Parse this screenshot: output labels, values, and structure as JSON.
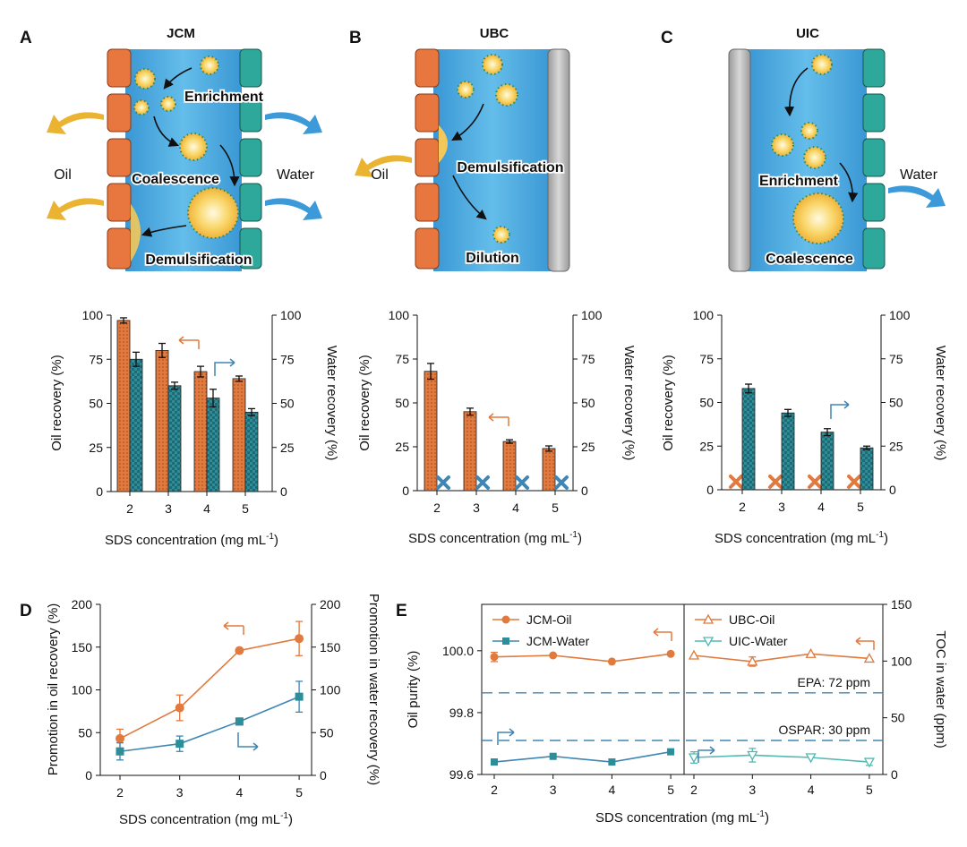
{
  "panels": {
    "A": {
      "letter": "A",
      "title": "JCM",
      "labels": {
        "oil": "Oil",
        "water": "Water",
        "enrichment": "Enrichment",
        "coalescence": "Coalescence",
        "demulsification": "Demulsification"
      }
    },
    "B": {
      "letter": "B",
      "title": "UBC",
      "labels": {
        "oil": "Oil",
        "demulsification": "Demulsification",
        "dilution": "Dilution"
      }
    },
    "C": {
      "letter": "C",
      "title": "UIC",
      "labels": {
        "water": "Water",
        "enrichment": "Enrichment",
        "coalescence": "Coalescence"
      }
    },
    "D": {
      "letter": "D"
    },
    "E": {
      "letter": "E"
    }
  },
  "colors": {
    "oil": "#e07a3e",
    "water": "#2d8d99",
    "water_line": "#3f86b3",
    "water_light": "#52b9b3",
    "channel": "#4aa8de",
    "grey": "#bdbdbd",
    "droplet": "#f5c84a",
    "axis": "#111111"
  },
  "chart_data": [
    {
      "id": "A",
      "type": "bar",
      "categories": [
        "2",
        "3",
        "4",
        "5"
      ],
      "series": [
        {
          "name": "Oil recovery",
          "axis": "left",
          "values": [
            97,
            80,
            68,
            64
          ],
          "errors": [
            1.5,
            4,
            3,
            1.5
          ]
        },
        {
          "name": "Water recovery",
          "axis": "right",
          "values": [
            75,
            60,
            53,
            45
          ],
          "errors": [
            4,
            2,
            5,
            2
          ]
        }
      ],
      "xlabel": "SDS concentration (mg mL",
      "xlabel_sup": "-1",
      "xlabel_end": ")",
      "ylabel": "Oil recovery (%)",
      "ylabel_right": "Water recovery (%)",
      "ylim": [
        0,
        100
      ],
      "yticks": [
        "0",
        "25",
        "50",
        "75",
        "100"
      ]
    },
    {
      "id": "B",
      "type": "bar",
      "categories": [
        "2",
        "3",
        "4",
        "5"
      ],
      "series": [
        {
          "name": "Oil recovery",
          "axis": "left",
          "values": [
            68,
            45,
            28,
            24
          ],
          "errors": [
            4.5,
            2,
            1,
            1.5
          ]
        },
        {
          "name": "Water recovery",
          "axis": "right",
          "values": [
            0,
            0,
            0,
            0
          ],
          "marker": "x"
        }
      ],
      "xlabel": "SDS concentration (mg mL",
      "xlabel_sup": "-1",
      "xlabel_end": ")",
      "ylabel": "Oil recovery (%)",
      "ylabel_right": "Water recovery (%)",
      "ylim": [
        0,
        100
      ],
      "yticks": [
        "0",
        "25",
        "50",
        "75",
        "100"
      ]
    },
    {
      "id": "C",
      "type": "bar",
      "categories": [
        "2",
        "3",
        "4",
        "5"
      ],
      "series": [
        {
          "name": "Oil recovery",
          "axis": "left",
          "values": [
            0,
            0,
            0,
            0
          ],
          "marker": "x"
        },
        {
          "name": "Water recovery",
          "axis": "right",
          "values": [
            58,
            44,
            33,
            24
          ],
          "errors": [
            2.5,
            2,
            2,
            1
          ]
        }
      ],
      "xlabel": "SDS concentration (mg mL",
      "xlabel_sup": "-1",
      "xlabel_end": ")",
      "ylabel": "Oil recovery (%)",
      "ylabel_right": "Water recovery (%)",
      "ylim": [
        0,
        100
      ],
      "yticks": [
        "0",
        "25",
        "50",
        "75",
        "100"
      ]
    },
    {
      "id": "D",
      "type": "line",
      "x": [
        2,
        3,
        4,
        5
      ],
      "series": [
        {
          "name": "Promotion in oil recovery",
          "axis": "left",
          "values": [
            43,
            79,
            146,
            160
          ],
          "errors": [
            11,
            15,
            0,
            20
          ]
        },
        {
          "name": "Promotion in water recovery",
          "axis": "right",
          "values": [
            28,
            37,
            63,
            92
          ],
          "errors": [
            10,
            9,
            4,
            18
          ]
        }
      ],
      "xlabel": "SDS concentration (mg mL",
      "xlabel_sup": "-1",
      "xlabel_end": ")",
      "ylabel": "Promotion in oil recovery (%)",
      "ylabel_right": "Promotion in water recovery (%)",
      "ylim": [
        0,
        200
      ],
      "yticks": [
        "0",
        "50",
        "100",
        "150",
        "200"
      ],
      "xticks": [
        "2",
        "3",
        "4",
        "5"
      ]
    },
    {
      "id": "E",
      "type": "line",
      "x": [
        2,
        3,
        4,
        5
      ],
      "series": [
        {
          "name": "JCM-Oil",
          "subpanel": "left",
          "axis": "left",
          "values": [
            99.98,
            99.985,
            99.965,
            99.99
          ],
          "errors": [
            0.015,
            0,
            0,
            0
          ]
        },
        {
          "name": "JCM-Water",
          "subpanel": "left",
          "axis": "right",
          "values": [
            11,
            16,
            11,
            20
          ]
        },
        {
          "name": "UBC-Oil",
          "subpanel": "right",
          "axis": "left",
          "values": [
            99.985,
            99.965,
            99.99,
            99.975
          ],
          "errors": [
            0,
            0.015,
            0,
            0
          ]
        },
        {
          "name": "UIC-Water",
          "subpanel": "right",
          "axis": "right",
          "values": [
            15,
            17,
            15,
            11
          ],
          "errors": [
            5,
            6,
            0,
            3
          ]
        }
      ],
      "reference_lines": [
        {
          "label": "EPA: 72 ppm",
          "value": 72
        },
        {
          "label": "OSPAR: 30 ppm",
          "value": 30
        }
      ],
      "xlabel": "SDS concentration (mg mL",
      "xlabel_sup": "-1",
      "xlabel_end": ")",
      "ylabel": "Oil purity (%)",
      "ylabel_right": "TOC in water (ppm)",
      "ylim": [
        99.6,
        100.15
      ],
      "yticks": [
        "99.6",
        "99.8",
        "100.0"
      ],
      "ylim_right": [
        0,
        150
      ],
      "yticks_right": [
        "0",
        "50",
        "100",
        "150"
      ],
      "xticks": [
        "2",
        "3",
        "4",
        "5"
      ]
    }
  ]
}
